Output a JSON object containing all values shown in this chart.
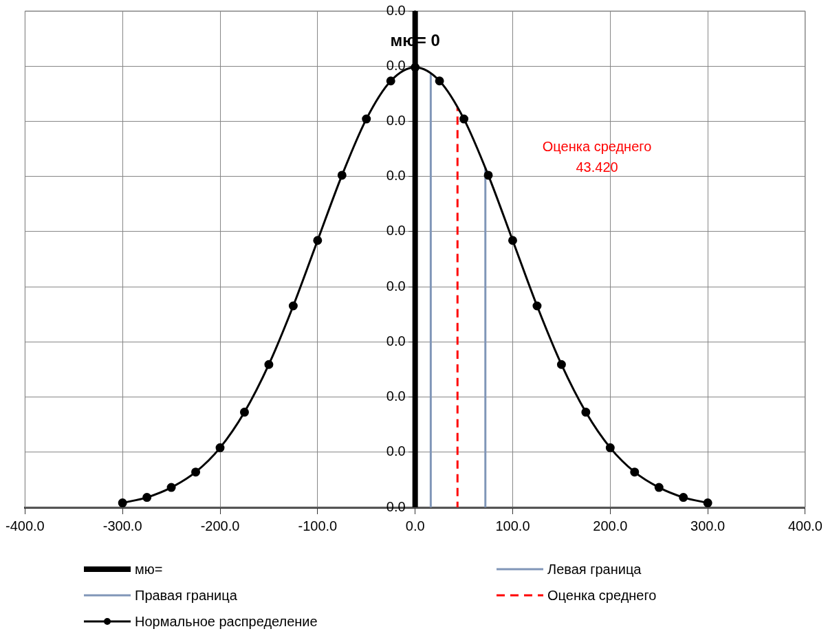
{
  "chart_data": {
    "type": "line",
    "xlim": [
      -400,
      400
    ],
    "xticks": [
      {
        "value": -400,
        "label": "-400.0"
      },
      {
        "value": -300,
        "label": "-300.0"
      },
      {
        "value": -200,
        "label": "-200.0"
      },
      {
        "value": -100,
        "label": "-100.0"
      },
      {
        "value": 0,
        "label": "0.0"
      },
      {
        "value": 100,
        "label": "100.0"
      },
      {
        "value": 200,
        "label": "200.0"
      },
      {
        "value": 300,
        "label": "300.0"
      },
      {
        "value": 400,
        "label": "400.0"
      }
    ],
    "ylim": [
      0,
      0.0045
    ],
    "yticks": [
      {
        "value": 0,
        "label": "0.0"
      },
      {
        "value": 0.0005,
        "label": "0.0"
      },
      {
        "value": 0.001,
        "label": "0.0"
      },
      {
        "value": 0.0015,
        "label": "0.0"
      },
      {
        "value": 0.002,
        "label": "0.0"
      },
      {
        "value": 0.0025,
        "label": "0.0"
      },
      {
        "value": 0.003,
        "label": "0.0"
      },
      {
        "value": 0.0035,
        "label": "0.0"
      },
      {
        "value": 0.004,
        "label": "0.0"
      },
      {
        "value": 0.0045,
        "label": "0.0"
      }
    ],
    "grid": true,
    "legend": "bottom",
    "series": [
      {
        "name": "мю=",
        "color": "#000000",
        "x": [
          0,
          0
        ],
        "values": [
          0,
          0.0045
        ],
        "marker": "none",
        "line_style": "solid"
      },
      {
        "name": "Левая граница",
        "color": "#8096b8",
        "x": [
          16,
          16
        ],
        "values": [
          0,
          0.00394
        ],
        "marker": "none",
        "line_style": "solid"
      },
      {
        "name": "Правая граница",
        "color": "#8096b8",
        "x": [
          72,
          72
        ],
        "values": [
          0,
          0.00308
        ],
        "marker": "none",
        "line_style": "solid"
      },
      {
        "name": "Оценка среднего",
        "color": "#ff0000",
        "x": [
          43.42,
          43.42
        ],
        "values": [
          0,
          0.00363
        ],
        "marker": "none",
        "line_style": "dashed"
      },
      {
        "name": "Нормальное распределение",
        "color": "#000000",
        "x": [
          -300,
          -275,
          -250,
          -225,
          -200,
          -175,
          -150,
          -125,
          -100,
          -75,
          -50,
          -25,
          0,
          25,
          50,
          75,
          100,
          125,
          150,
          175,
          200,
          225,
          250,
          275,
          300
        ],
        "values": [
          4e-05,
          9e-05,
          0.00018,
          0.00032,
          0.00054,
          0.000863,
          0.001295,
          0.001826,
          0.00242,
          0.003011,
          0.003521,
          0.003866,
          0.003989,
          0.003866,
          0.003521,
          0.003011,
          0.00242,
          0.001826,
          0.001295,
          0.000863,
          0.00054,
          0.00032,
          0.00018,
          9e-05,
          4e-05
        ],
        "marker": "circle",
        "line_style": "solid"
      }
    ],
    "annotations": [
      "мю= 0",
      "Оценка среднего\n43.420"
    ]
  }
}
